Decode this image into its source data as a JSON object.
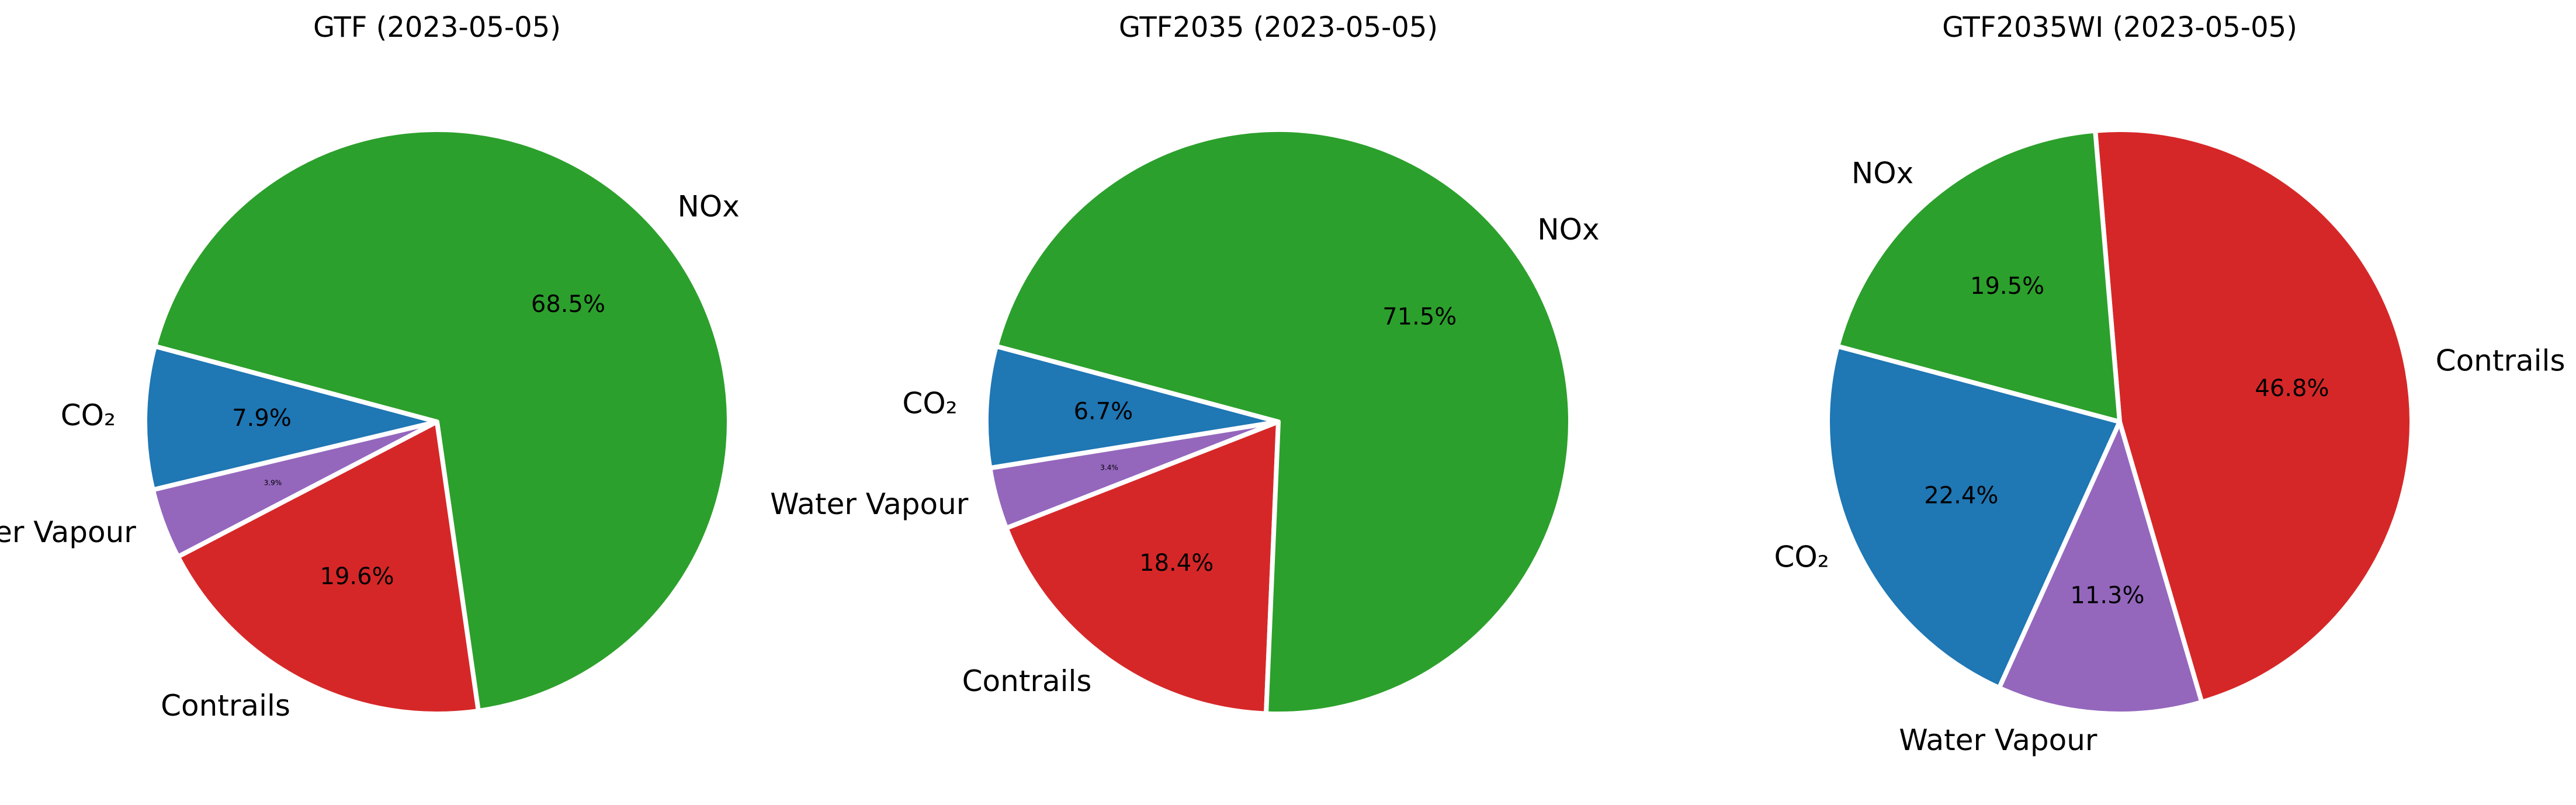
{
  "colors": {
    "CO₂": "#1f77b4",
    "Water Vapour": "#9467bd",
    "Contrails": "#d62728",
    "NOx": "#2ca02c"
  },
  "chart_data": [
    {
      "type": "pie",
      "title": "GTF (2023-05-05)",
      "slices": [
        {
          "label": "CO₂",
          "value": 7.9,
          "pct_text": "7.9%"
        },
        {
          "label": "Water Vapour",
          "value": 3.9,
          "pct_text": "3.9%"
        },
        {
          "label": "Contrails",
          "value": 19.6,
          "pct_text": "19.6%"
        },
        {
          "label": "NOx",
          "value": 68.5,
          "pct_text": "68.5%"
        }
      ]
    },
    {
      "type": "pie",
      "title": "GTF2035 (2023-05-05)",
      "slices": [
        {
          "label": "CO₂",
          "value": 6.7,
          "pct_text": "6.7%"
        },
        {
          "label": "Water Vapour",
          "value": 3.4,
          "pct_text": "3.4%"
        },
        {
          "label": "Contrails",
          "value": 18.4,
          "pct_text": "18.4%"
        },
        {
          "label": "NOx",
          "value": 71.5,
          "pct_text": "71.5%"
        }
      ]
    },
    {
      "type": "pie",
      "title": "GTF2035WI (2023-05-05)",
      "slices": [
        {
          "label": "CO₂",
          "value": 22.4,
          "pct_text": "22.4%"
        },
        {
          "label": "Water Vapour",
          "value": 11.3,
          "pct_text": "11.3%"
        },
        {
          "label": "Contrails",
          "value": 46.8,
          "pct_text": "46.8%"
        },
        {
          "label": "NOx",
          "value": 19.5,
          "pct_text": "19.5%"
        }
      ]
    }
  ]
}
